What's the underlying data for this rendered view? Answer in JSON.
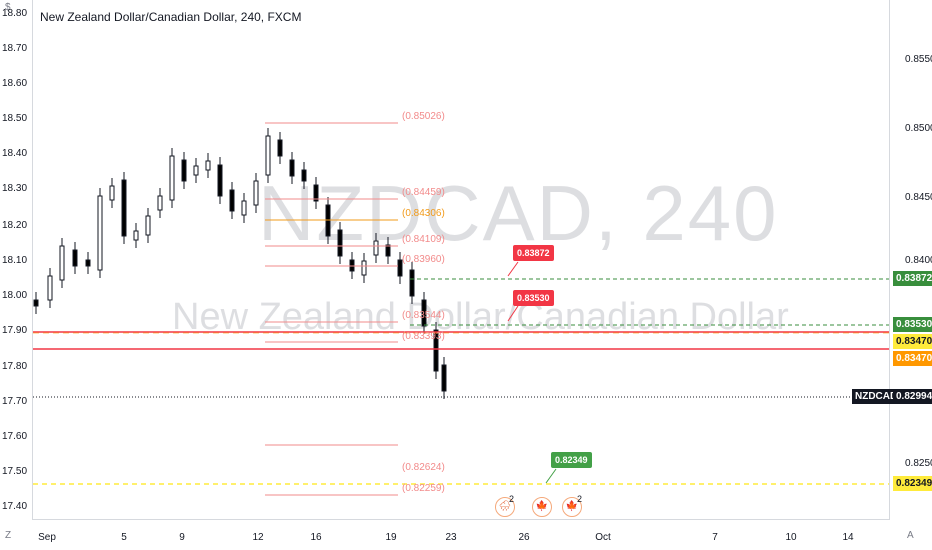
{
  "title": "New Zealand Dollar/Canadian Dollar, 240, FXCM",
  "watermark": {
    "main": "NZDCAD, 240",
    "sub": "New Zealand Dollar/Canadian Dollar"
  },
  "left_axis": [
    "18.80",
    "18.70",
    "18.60",
    "18.50",
    "18.40",
    "18.30",
    "18.20",
    "18.10",
    "18.00",
    "17.90",
    "17.80",
    "17.70",
    "17.60",
    "17.50",
    "17.40"
  ],
  "right_axis": [
    "0.85500",
    "0.85000",
    "0.84500",
    "0.84000",
    "0.82500"
  ],
  "x_axis": [
    "Sep",
    "5",
    "9",
    "12",
    "16",
    "19",
    "23",
    "26",
    "Oct",
    "7",
    "10",
    "14"
  ],
  "fib_levels": [
    {
      "text": "(0.85026)",
      "color": "pink"
    },
    {
      "text": "(0.84459)",
      "color": "pink"
    },
    {
      "text": "(0.84306)",
      "color": "orange"
    },
    {
      "text": "(0.84109)",
      "color": "pink"
    },
    {
      "text": "(0.83960)",
      "color": "pink"
    },
    {
      "text": "(0.83544)",
      "color": "pink"
    },
    {
      "text": "(0.83393)",
      "color": "pink"
    },
    {
      "text": "(0.82624)",
      "color": "pink"
    },
    {
      "text": "(0.82259)",
      "color": "pink"
    }
  ],
  "callouts": [
    {
      "text": "0.83872",
      "color": "#f23645"
    },
    {
      "text": "0.83530",
      "color": "#f23645"
    },
    {
      "text": "0.82349",
      "color": "#43a047"
    }
  ],
  "price_tags": [
    {
      "text": "0.83872",
      "bg": "#388e3c",
      "fg": "#ffffff"
    },
    {
      "text": "0.83530",
      "bg": "#388e3c",
      "fg": "#ffffff"
    },
    {
      "text": "0.83470",
      "bg": "#ffeb3b",
      "fg": "#131722"
    },
    {
      "text": "0.83470",
      "bg": "#ff9800",
      "fg": "#ffffff"
    },
    {
      "text": "0.82349",
      "bg": "#ffeb3b",
      "fg": "#131722"
    }
  ],
  "current_price": {
    "symbol": "NZDCAD",
    "value": "0.82994"
  },
  "events": [
    {
      "count": "2"
    },
    {
      "count": ""
    },
    {
      "count": "2"
    }
  ],
  "corners": {
    "bottom_left": "Z",
    "bottom_right": "A",
    "top_left": "$"
  },
  "colors": {
    "candle_up": "#ffffff",
    "candle_down": "#000000",
    "red_line": "#f23645",
    "green_dashed": "#388e3c",
    "yellow_dashed": "#ffeb3b",
    "orange_line": "#ff9800",
    "fib_pink": "#f28b8b"
  }
}
